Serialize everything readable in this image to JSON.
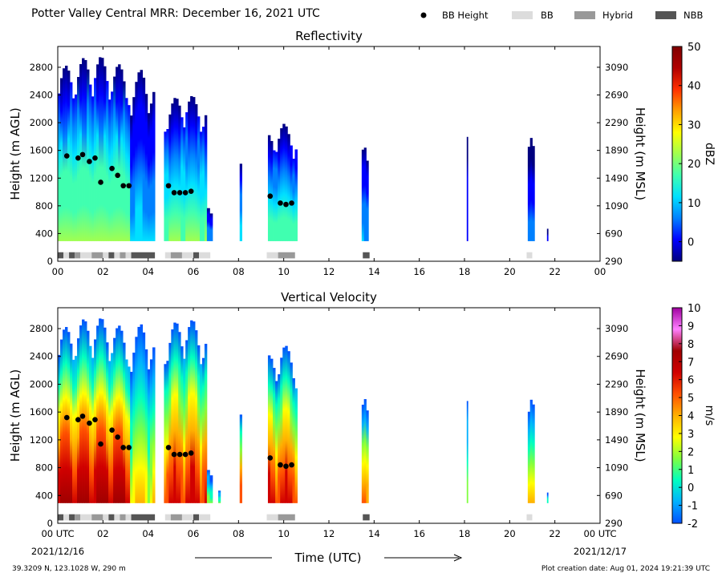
{
  "header": {
    "title": "Potter Valley Central MRR:  December 16, 2021 UTC"
  },
  "legend": {
    "items": [
      {
        "label": "BB Height",
        "kind": "marker",
        "color": "#000000"
      },
      {
        "label": "BB",
        "kind": "swatch",
        "color": "#dcdcdc"
      },
      {
        "label": "Hybrid",
        "kind": "swatch",
        "color": "#999999"
      },
      {
        "label": "NBB",
        "kind": "swatch",
        "color": "#555555"
      }
    ]
  },
  "footer": {
    "location": "39.3209 N, 123.1028 W, 290 m",
    "creation": "Plot creation date: Aug 01, 2024 19:21:39 UTC",
    "xlabel": "Time (UTC)",
    "start_date": "2021/12/16",
    "end_date": "2021/12/17"
  },
  "chart_data": [
    {
      "type": "heatmap",
      "title": "Reflectivity",
      "ylabel": "Height (m AGL)",
      "y2label": "Height (m MSL)",
      "colorbar_label": "dBZ",
      "colorbar_colors": [
        "#00007f",
        "#0000ff",
        "#0080ff",
        "#00e0ff",
        "#40ffb0",
        "#a0ff50",
        "#ffff00",
        "#ffa000",
        "#ff3000",
        "#b00000",
        "#7f0000"
      ],
      "colorbar_range": [
        -5,
        50
      ],
      "colorbar_ticks": [
        "0",
        "10",
        "20",
        "30",
        "40",
        "50"
      ],
      "xlim": [
        0,
        24
      ],
      "ylim": [
        0,
        3100
      ],
      "x_ticks": [
        "00",
        "02",
        "04",
        "06",
        "08",
        "10",
        "12",
        "14",
        "16",
        "18",
        "20",
        "22",
        "00"
      ],
      "y_ticks": [
        "0",
        "400",
        "800",
        "1200",
        "1600",
        "2000",
        "2400",
        "2800"
      ],
      "y2_ticks": [
        "290",
        "690",
        "1090",
        "1490",
        "1890",
        "2290",
        "2690",
        "3090"
      ],
      "bb_height": {
        "x": [
          0.4,
          0.9,
          1.1,
          1.4,
          1.65,
          1.9,
          2.4,
          2.65,
          2.9,
          3.15,
          4.9,
          5.15,
          5.4,
          5.65,
          5.9,
          9.4,
          9.85,
          10.1,
          10.35
        ],
        "y": [
          1520,
          1490,
          1540,
          1440,
          1490,
          1140,
          1340,
          1240,
          1090,
          1090,
          1090,
          990,
          990,
          990,
          1010,
          940,
          840,
          820,
          840
        ]
      },
      "bb_type": [
        {
          "start": 0.0,
          "end": 0.25,
          "class": "NBB"
        },
        {
          "start": 0.25,
          "end": 0.5,
          "class": "BB"
        },
        {
          "start": 0.5,
          "end": 0.75,
          "class": "NBB"
        },
        {
          "start": 0.75,
          "end": 1.0,
          "class": "Hybrid"
        },
        {
          "start": 1.0,
          "end": 1.5,
          "class": "BB"
        },
        {
          "start": 1.5,
          "end": 2.0,
          "class": "Hybrid"
        },
        {
          "start": 2.0,
          "end": 2.25,
          "class": "BB"
        },
        {
          "start": 2.25,
          "end": 2.5,
          "class": "NBB"
        },
        {
          "start": 2.5,
          "end": 2.75,
          "class": "BB"
        },
        {
          "start": 2.75,
          "end": 3.0,
          "class": "Hybrid"
        },
        {
          "start": 3.0,
          "end": 3.25,
          "class": "BB"
        },
        {
          "start": 3.25,
          "end": 4.3,
          "class": "NBB"
        },
        {
          "start": 4.75,
          "end": 5.0,
          "class": "BB"
        },
        {
          "start": 5.0,
          "end": 5.5,
          "class": "Hybrid"
        },
        {
          "start": 5.5,
          "end": 6.0,
          "class": "BB"
        },
        {
          "start": 6.0,
          "end": 6.25,
          "class": "NBB"
        },
        {
          "start": 6.25,
          "end": 6.75,
          "class": "BB"
        },
        {
          "start": 9.25,
          "end": 9.75,
          "class": "BB"
        },
        {
          "start": 9.75,
          "end": 10.5,
          "class": "Hybrid"
        },
        {
          "start": 13.5,
          "end": 13.8,
          "class": "NBB"
        },
        {
          "start": 20.75,
          "end": 21.0,
          "class": "BB"
        }
      ],
      "echoes": [
        {
          "start": 0.0,
          "end": 3.2,
          "top": 3000,
          "core": 22
        },
        {
          "start": 3.2,
          "end": 4.3,
          "top": 2800,
          "core": 10
        },
        {
          "start": 4.7,
          "end": 6.6,
          "top": 2450,
          "core": 20
        },
        {
          "start": 6.6,
          "end": 6.85,
          "top": 900,
          "core": 8
        },
        {
          "start": 8.05,
          "end": 8.15,
          "top": 1500,
          "core": 12
        },
        {
          "start": 9.3,
          "end": 10.6,
          "top": 2000,
          "core": 18
        },
        {
          "start": 13.45,
          "end": 13.75,
          "top": 1700,
          "core": 8
        },
        {
          "start": 18.1,
          "end": 18.15,
          "top": 1800,
          "core": 2
        },
        {
          "start": 20.8,
          "end": 21.1,
          "top": 1780,
          "core": 4
        },
        {
          "start": 21.65,
          "end": 21.7,
          "top": 500,
          "core": 0
        }
      ]
    },
    {
      "type": "heatmap",
      "title": "Vertical Velocity",
      "ylabel": "Height (m AGL)",
      "y2label": "Height (m MSL)",
      "colorbar_label": "m/s",
      "colorbar_colors": [
        "#0050ff",
        "#00b0ff",
        "#00ffc0",
        "#80ff40",
        "#ffff00",
        "#ffb000",
        "#ff5000",
        "#d00000",
        "#a00000",
        "#ff80ff",
        "#a000a0"
      ],
      "colorbar_range": [
        -2,
        10
      ],
      "colorbar_ticks": [
        "-2",
        "-1",
        "0",
        "1",
        "2",
        "3",
        "4",
        "5",
        "6",
        "7",
        "8",
        "9",
        "10"
      ],
      "xlim": [
        0,
        24
      ],
      "ylim": [
        0,
        3100
      ],
      "x_ticks": [
        "00 UTC",
        "02",
        "04",
        "06",
        "08",
        "10",
        "12",
        "14",
        "16",
        "18",
        "20",
        "22",
        "00 UTC"
      ],
      "y_ticks": [
        "0",
        "400",
        "800",
        "1200",
        "1600",
        "2000",
        "2400",
        "2800"
      ],
      "y2_ticks": [
        "290",
        "690",
        "1090",
        "1490",
        "1890",
        "2290",
        "2690",
        "3090"
      ],
      "bb_height": {
        "x": [
          0.4,
          0.9,
          1.1,
          1.4,
          1.65,
          1.9,
          2.4,
          2.65,
          2.9,
          3.15,
          4.9,
          5.15,
          5.4,
          5.65,
          5.9,
          9.4,
          9.85,
          10.1,
          10.35
        ],
        "y": [
          1520,
          1490,
          1540,
          1440,
          1490,
          1140,
          1340,
          1240,
          1090,
          1090,
          1090,
          990,
          990,
          990,
          1010,
          940,
          840,
          820,
          840
        ]
      },
      "bb_type": [
        {
          "start": 0.0,
          "end": 0.25,
          "class": "NBB"
        },
        {
          "start": 0.25,
          "end": 0.5,
          "class": "BB"
        },
        {
          "start": 0.5,
          "end": 0.75,
          "class": "NBB"
        },
        {
          "start": 0.75,
          "end": 1.0,
          "class": "Hybrid"
        },
        {
          "start": 1.0,
          "end": 1.5,
          "class": "BB"
        },
        {
          "start": 1.5,
          "end": 2.0,
          "class": "Hybrid"
        },
        {
          "start": 2.0,
          "end": 2.25,
          "class": "BB"
        },
        {
          "start": 2.25,
          "end": 2.5,
          "class": "NBB"
        },
        {
          "start": 2.5,
          "end": 2.75,
          "class": "BB"
        },
        {
          "start": 2.75,
          "end": 3.0,
          "class": "Hybrid"
        },
        {
          "start": 3.0,
          "end": 3.25,
          "class": "BB"
        },
        {
          "start": 3.25,
          "end": 4.3,
          "class": "NBB"
        },
        {
          "start": 4.75,
          "end": 5.0,
          "class": "BB"
        },
        {
          "start": 5.0,
          "end": 5.5,
          "class": "Hybrid"
        },
        {
          "start": 5.5,
          "end": 6.0,
          "class": "BB"
        },
        {
          "start": 6.0,
          "end": 6.25,
          "class": "NBB"
        },
        {
          "start": 6.25,
          "end": 6.75,
          "class": "BB"
        },
        {
          "start": 9.25,
          "end": 9.75,
          "class": "BB"
        },
        {
          "start": 9.75,
          "end": 10.5,
          "class": "Hybrid"
        },
        {
          "start": 13.5,
          "end": 13.8,
          "class": "NBB"
        },
        {
          "start": 20.75,
          "end": 21.0,
          "class": "BB"
        }
      ],
      "echoes": [
        {
          "start": 0.0,
          "end": 3.2,
          "top": 3000,
          "core": 7
        },
        {
          "start": 3.2,
          "end": 4.3,
          "top": 2900,
          "core": 3
        },
        {
          "start": 4.7,
          "end": 6.6,
          "top": 3000,
          "core": 6
        },
        {
          "start": 6.6,
          "end": 6.85,
          "top": 900,
          "core": 2
        },
        {
          "start": 7.1,
          "end": 7.2,
          "top": 500,
          "core": 1
        },
        {
          "start": 8.05,
          "end": 8.15,
          "top": 1600,
          "core": 5
        },
        {
          "start": 9.3,
          "end": 10.6,
          "top": 2600,
          "core": 6
        },
        {
          "start": 13.45,
          "end": 13.75,
          "top": 1800,
          "core": 4
        },
        {
          "start": 18.1,
          "end": 18.15,
          "top": 1800,
          "core": 1
        },
        {
          "start": 20.8,
          "end": 21.1,
          "top": 1800,
          "core": 3
        },
        {
          "start": 21.65,
          "end": 21.7,
          "top": 500,
          "core": 1
        }
      ]
    }
  ]
}
